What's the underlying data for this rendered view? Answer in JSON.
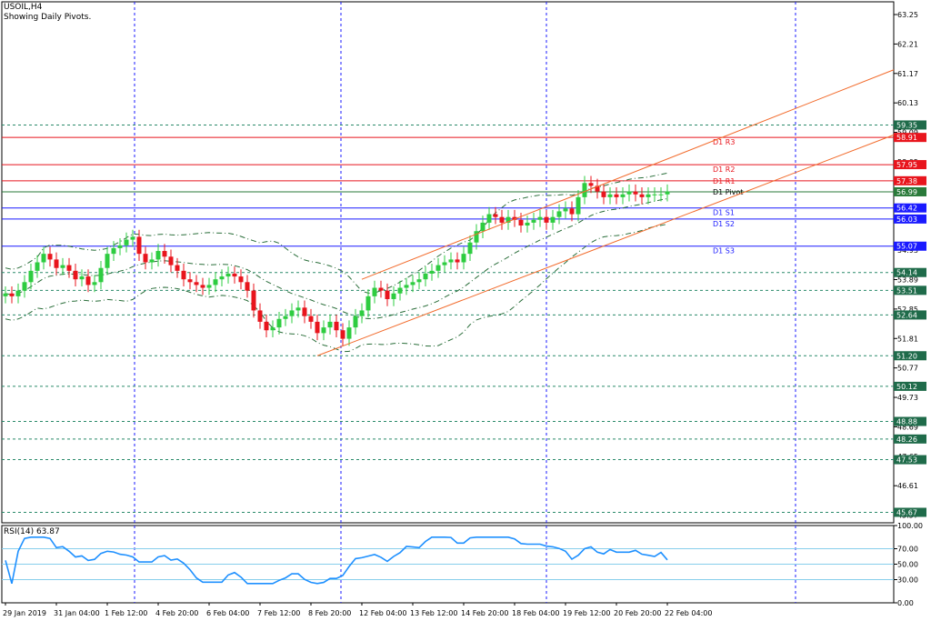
{
  "header": {
    "symbol": "USOIL,H4",
    "subtitle": "Showing Daily Pivots."
  },
  "rsi": {
    "label": "RSI(14) 63.87",
    "ticks": [
      100.0,
      70.0,
      50.0,
      30.0,
      0.0
    ],
    "tick_labels": [
      "100.00",
      "70.00",
      "50.00",
      "30.00",
      "0.00"
    ]
  },
  "colors": {
    "bull": "#2ecc40",
    "bear": "#e8151d",
    "band": "#2a6e3a",
    "channel": "#f26b2c",
    "rsi_line": "#1e90ff",
    "pivot_blue": "#1a1aff",
    "pivot_red": "#e8151d",
    "pivot_green": "#2a7a3a",
    "grid": "#2a8a6a"
  },
  "chart_data": {
    "type": "candlestick",
    "title": "USOIL,H4",
    "ylim": [
      45.3,
      63.7
    ],
    "price_ticks": [
      63.25,
      62.21,
      61.17,
      60.13,
      59.09,
      58.05,
      57.01,
      55.97,
      54.93,
      53.89,
      52.85,
      51.81,
      50.77,
      49.73,
      48.69,
      47.65,
      46.61,
      45.57
    ],
    "price_tick_labels": [
      "63.25",
      "62.21",
      "61.17",
      "60.13",
      "59.09",
      "58.05",
      "57.01",
      "55.97",
      "54.93",
      "53.89",
      "52.85",
      "51.81",
      "50.77",
      "49.73",
      "48.69",
      "47.65",
      "46.61",
      "45.57"
    ],
    "x_labels": [
      "29 Jan 2019",
      "31 Jan 04:00",
      "1 Feb 12:00",
      "4 Feb 20:00",
      "6 Feb 04:00",
      "7 Feb 12:00",
      "8 Feb 20:00",
      "12 Feb 04:00",
      "13 Feb 12:00",
      "14 Feb 20:00",
      "18 Feb 04:00",
      "19 Feb 12:00",
      "20 Feb 20:00",
      "22 Feb 04:00"
    ],
    "x_label_bars": [
      0,
      8,
      16,
      24,
      32,
      40,
      48,
      56,
      64,
      72,
      80,
      88,
      96,
      104
    ],
    "pivots": [
      {
        "name": "D1 R3",
        "value": 58.91,
        "label": "58.91",
        "color": "red"
      },
      {
        "name": "D1 R2",
        "value": 57.95,
        "label": "57.95",
        "color": "red"
      },
      {
        "name": "D1 R1",
        "value": 57.38,
        "label": "57.38",
        "color": "red"
      },
      {
        "name": "D1 Pivot",
        "value": 56.99,
        "label": "56.99",
        "color": "green"
      },
      {
        "name": "D1 S1",
        "value": 56.42,
        "label": "56.42",
        "color": "blue"
      },
      {
        "name": "D1 S2",
        "value": 56.03,
        "label": "56.03",
        "color": "blue"
      },
      {
        "name": "D1 S3",
        "value": 55.07,
        "label": "55.07",
        "color": "blue"
      }
    ],
    "levels": [
      {
        "value": 59.35,
        "label": "59.35"
      },
      {
        "value": 54.14,
        "label": "54.14"
      },
      {
        "value": 53.51,
        "label": "53.51"
      },
      {
        "value": 52.64,
        "label": "52.64"
      },
      {
        "value": 51.2,
        "label": "51.20"
      },
      {
        "value": 50.12,
        "label": "50.12"
      },
      {
        "value": 48.88,
        "label": "48.88"
      },
      {
        "value": 48.26,
        "label": "48.26"
      },
      {
        "value": 47.53,
        "label": "47.53"
      },
      {
        "value": 45.67,
        "label": "45.67"
      }
    ],
    "closes": [
      53.4,
      53.3,
      53.5,
      53.8,
      54.2,
      54.5,
      54.8,
      54.6,
      54.3,
      54.4,
      54.2,
      53.9,
      54.0,
      53.7,
      53.8,
      54.3,
      54.8,
      55.0,
      55.1,
      55.3,
      55.4,
      54.8,
      54.5,
      54.6,
      54.9,
      54.7,
      54.4,
      54.2,
      53.9,
      53.8,
      53.7,
      53.6,
      53.7,
      53.9,
      54.0,
      54.1,
      54.0,
      53.8,
      53.5,
      52.8,
      52.4,
      52.1,
      52.2,
      52.5,
      52.6,
      52.8,
      52.9,
      52.6,
      52.4,
      52.0,
      52.2,
      52.4,
      52.1,
      51.8,
      52.2,
      52.6,
      52.8,
      53.3,
      53.6,
      53.5,
      53.2,
      53.4,
      53.6,
      53.7,
      53.8,
      53.9,
      54.1,
      54.2,
      54.4,
      54.5,
      54.6,
      54.5,
      54.8,
      55.2,
      55.6,
      55.9,
      56.2,
      56.1,
      55.9,
      56.1,
      56.0,
      55.8,
      55.9,
      56.0,
      56.1,
      55.9,
      56.1,
      56.3,
      56.4,
      56.2,
      56.8,
      57.3,
      57.2,
      57.0,
      56.8,
      56.9,
      56.8,
      56.9,
      57.0,
      56.9,
      56.8,
      56.9,
      56.9,
      56.9,
      57.0
    ]
  }
}
